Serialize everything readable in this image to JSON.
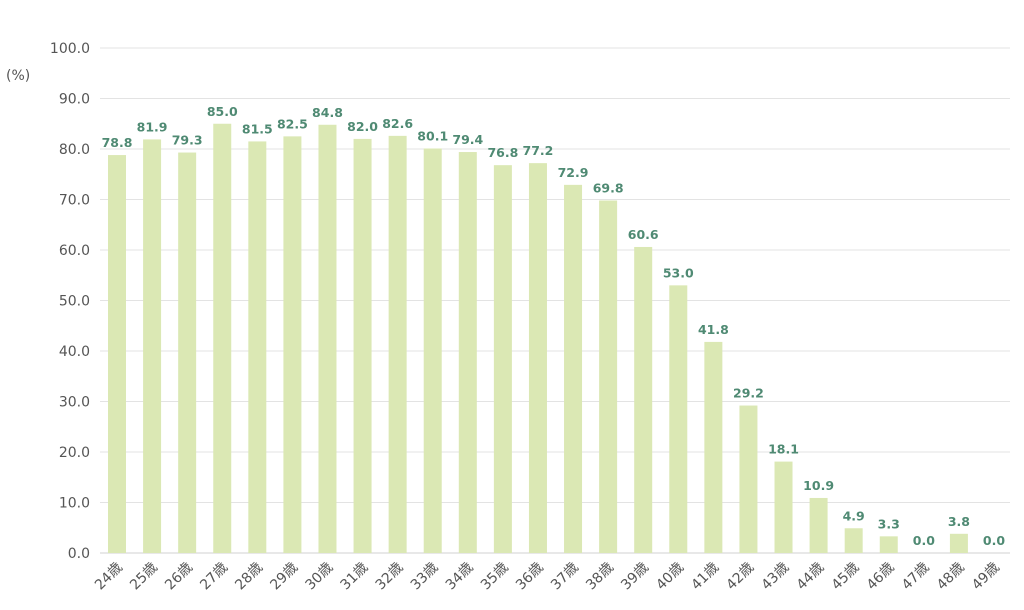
{
  "chart_data": {
    "type": "bar",
    "title": "",
    "xlabel": "",
    "ylabel": "(%)",
    "ylim": [
      0,
      100
    ],
    "yticks": [
      "0.0",
      "10.0",
      "20.0",
      "30.0",
      "40.0",
      "50.0",
      "60.0",
      "70.0",
      "80.0",
      "90.0",
      "100.0"
    ],
    "grid": true,
    "categories": [
      "24歳",
      "25歳",
      "26歳",
      "27歳",
      "28歳",
      "29歳",
      "30歳",
      "31歳",
      "32歳",
      "33歳",
      "34歳",
      "35歳",
      "36歳",
      "37歳",
      "38歳",
      "39歳",
      "40歳",
      "41歳",
      "42歳",
      "43歳",
      "44歳",
      "45歳",
      "46歳",
      "47歳",
      "48歳",
      "49歳"
    ],
    "values": [
      78.8,
      81.9,
      79.3,
      85.0,
      81.5,
      82.5,
      84.8,
      82.0,
      82.6,
      80.1,
      79.4,
      76.8,
      77.2,
      72.9,
      69.8,
      60.6,
      53.0,
      41.8,
      29.2,
      18.1,
      10.9,
      4.9,
      3.3,
      0.0,
      3.8,
      0.0
    ],
    "labels": [
      "78.8",
      "81.9",
      "79.3",
      "85.0",
      "81.5",
      "82.5",
      "84.8",
      "82.0",
      "82.6",
      "80.1",
      "79.4",
      "76.8",
      "77.2",
      "72.9",
      "69.8",
      "60.6",
      "53.0",
      "41.8",
      "29.2",
      "18.1",
      "10.9",
      "4.9",
      "3.3",
      "0.0",
      "3.8",
      "0.0"
    ],
    "colors": {
      "bar": "#dbe8b4",
      "label": "#4f8a73",
      "grid": "#e3e3e3"
    }
  }
}
